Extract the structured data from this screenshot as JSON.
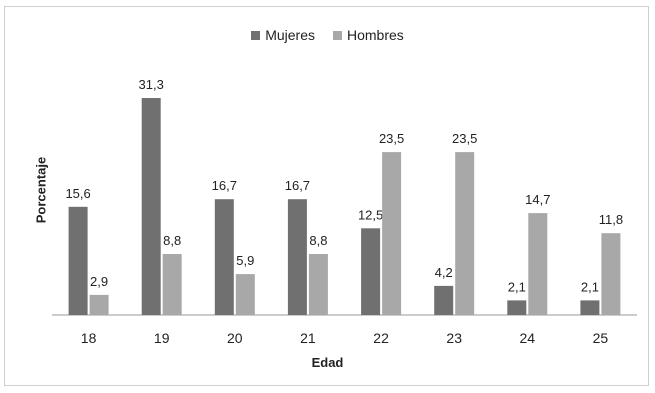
{
  "chart_data": {
    "type": "bar",
    "categories": [
      "18",
      "19",
      "20",
      "21",
      "22",
      "23",
      "24",
      "25"
    ],
    "series": [
      {
        "name": "Mujeres",
        "values": [
          15.6,
          31.3,
          16.7,
          16.7,
          12.5,
          4.2,
          2.1,
          2.1
        ],
        "labels": [
          "15,6",
          "31,3",
          "16,7",
          "16,7",
          "12,5",
          "4,2",
          "2,1",
          "2,1"
        ],
        "color": "#707070"
      },
      {
        "name": "Hombres",
        "values": [
          2.9,
          8.8,
          5.9,
          8.8,
          23.5,
          23.5,
          14.7,
          11.8
        ],
        "labels": [
          "2,9",
          "8,8",
          "5,9",
          "8,8",
          "23,5",
          "23,5",
          "14,7",
          "11,8"
        ],
        "color": "#a8a8a8"
      }
    ],
    "xlabel": "Edad",
    "ylabel": "Porcentaje",
    "ylim": [
      0,
      31.3
    ],
    "grid": false,
    "legend_position": "top-center"
  }
}
